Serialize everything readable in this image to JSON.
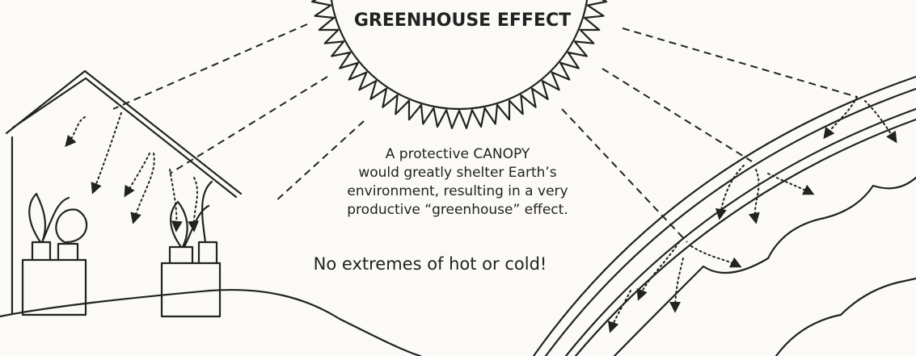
{
  "title": "GREENHOUSE EFFECT",
  "caption": {
    "lines": [
      "A protective CANOPY",
      "would greatly shelter Earth’s",
      "environment, resulting in a very",
      "productive “greenhouse” effect."
    ]
  },
  "tagline": "No extremes of hot or cold!"
}
